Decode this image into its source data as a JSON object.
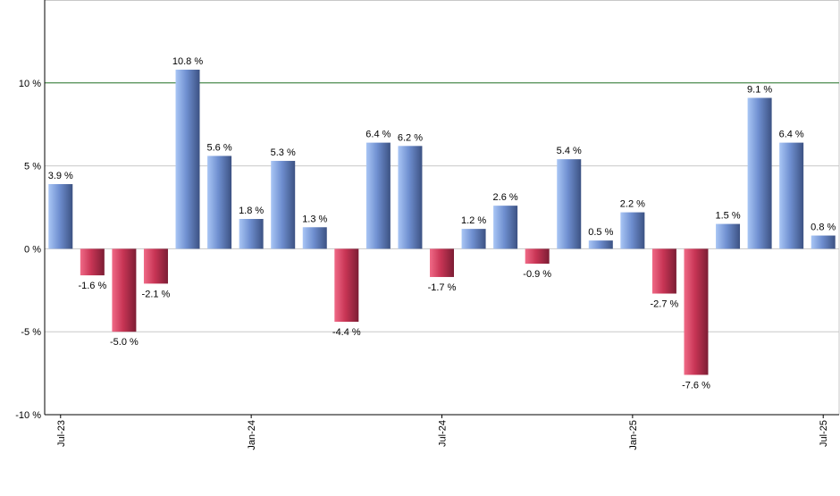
{
  "chart_data": {
    "type": "bar",
    "categories": [
      "Jul-23",
      "Aug-23",
      "Sep-23",
      "Oct-23",
      "Nov-23",
      "Dec-23",
      "Jan-24",
      "Feb-24",
      "Mar-24",
      "Apr-24",
      "May-24",
      "Jun-24",
      "Jul-24",
      "Aug-24",
      "Sep-24",
      "Oct-24",
      "Nov-24",
      "Dec-24",
      "Jan-25",
      "Feb-25",
      "Mar-25",
      "Apr-25",
      "May-25",
      "Jun-25",
      "Jul-25"
    ],
    "values": [
      3.9,
      -1.6,
      -5.0,
      -2.1,
      10.8,
      5.6,
      1.8,
      5.3,
      1.3,
      -4.4,
      6.4,
      6.2,
      -1.7,
      1.2,
      2.6,
      -0.9,
      5.4,
      0.5,
      2.2,
      -2.7,
      -7.6,
      1.5,
      9.1,
      6.4,
      0.8
    ],
    "value_labels": [
      "3.9 %",
      "-1.6 %",
      "-5.0 %",
      "-2.1 %",
      "10.8 %",
      "5.6 %",
      "1.8 %",
      "5.3 %",
      "1.3 %",
      "-4.4 %",
      "6.4 %",
      "6.2 %",
      "-1.7 %",
      "1.2 %",
      "2.6 %",
      "-0.9 %",
      "5.4 %",
      "0.5 %",
      "2.2 %",
      "-2.7 %",
      "-7.6 %",
      "1.5 %",
      "9.1 %",
      "6.4 %",
      "0.8 %"
    ],
    "x_tick_labels": [
      {
        "category_index": 0,
        "label": "Jul-23"
      },
      {
        "category_index": 6,
        "label": "Jan-24"
      },
      {
        "category_index": 12,
        "label": "Jul-24"
      },
      {
        "category_index": 18,
        "label": "Jan-25"
      },
      {
        "category_index": 24,
        "label": "Jul-25"
      }
    ],
    "y_ticks": [
      {
        "value": 10,
        "label": "10 %"
      },
      {
        "value": 5,
        "label": "5 %"
      },
      {
        "value": 0,
        "label": "0 %"
      },
      {
        "value": -5,
        "label": "-5 %"
      },
      {
        "value": -10,
        "label": "-10 %"
      }
    ],
    "ylim": [
      -10,
      15
    ],
    "reference_line": 10,
    "grid": true,
    "title": "",
    "xlabel": "",
    "ylabel": "",
    "colors": {
      "positive_light": "#a9c6f5",
      "positive_mid": "#6f8fd0",
      "positive_dark": "#3c5283",
      "negative_light": "#f06a87",
      "negative_mid": "#c83555",
      "negative_dark": "#7c1d34",
      "grid": "#c8c8c8",
      "reference_line": "#2e7d32",
      "axis": "#000000",
      "text": "#000000"
    }
  }
}
